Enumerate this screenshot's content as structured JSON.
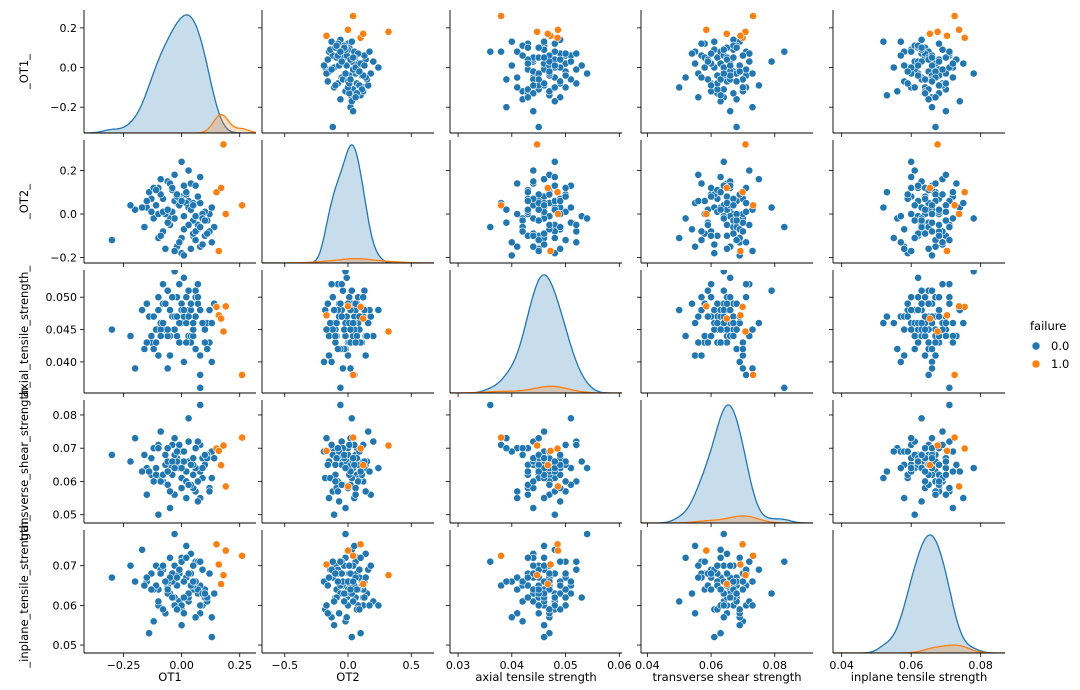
{
  "chart_data": {
    "type": "scatter",
    "subtype": "pairplot",
    "variables": [
      {
        "key": "OT1",
        "ylabel": "_OT1_",
        "xlabel": "OT1",
        "range": [
          -0.42,
          0.32
        ],
        "xticks": [
          -0.25,
          0.0,
          0.25
        ],
        "xtick_labels": [
          "−0.25",
          "0.00",
          "0.25"
        ],
        "yticks": [
          -0.2,
          0.0,
          0.2
        ],
        "ytick_labels": [
          "−0.2",
          "0.0",
          "0.2"
        ],
        "yrange": [
          -0.33,
          0.29
        ]
      },
      {
        "key": "OT2",
        "ylabel": "_OT2_",
        "xlabel": "OT2",
        "range": [
          -0.68,
          0.68
        ],
        "xticks": [
          -0.5,
          0.0,
          0.5
        ],
        "xtick_labels": [
          "−0.5",
          "0.0",
          "0.5"
        ],
        "yticks": [
          -0.2,
          0.0,
          0.2
        ],
        "ytick_labels": [
          "−0.2",
          "0.0",
          "0.2"
        ],
        "yrange": [
          -0.225,
          0.34
        ]
      },
      {
        "key": "axial_tensile_strength",
        "ylabel": "axial_tensile_strength_",
        "xlabel": "axial tensile strength",
        "range": [
          0.0285,
          0.0605
        ],
        "xticks": [
          0.03,
          0.04,
          0.05,
          0.06
        ],
        "xtick_labels": [
          "0.03",
          "0.04",
          "0.05",
          "0.06"
        ],
        "yticks": [
          0.04,
          0.045,
          0.05
        ],
        "ytick_labels": [
          "0.040",
          "0.045",
          "0.050"
        ],
        "yrange": [
          0.0352,
          0.0542
        ]
      },
      {
        "key": "transverse_shear_strength",
        "ylabel": "transverse_shear_strength_",
        "xlabel": "transverse shear strength",
        "range": [
          0.038,
          0.092
        ],
        "xticks": [
          0.04,
          0.06,
          0.08
        ],
        "xtick_labels": [
          "0.04",
          "0.06",
          "0.08"
        ],
        "yticks": [
          0.05,
          0.06,
          0.07,
          0.08
        ],
        "ytick_labels": [
          "0.05",
          "0.06",
          "0.07",
          "0.08"
        ],
        "yrange": [
          0.0475,
          0.0845
        ]
      },
      {
        "key": "inplane_tensile_strength",
        "ylabel": "_inplane_tensile_strength_",
        "xlabel": "inplane tensile strength",
        "range": [
          0.0375,
          0.087
        ],
        "xticks": [
          0.04,
          0.06,
          0.08
        ],
        "xtick_labels": [
          "0.04",
          "0.06",
          "0.08"
        ],
        "yticks": [
          0.05,
          0.06,
          0.07
        ],
        "ytick_labels": [
          "0.05",
          "0.06",
          "0.07"
        ],
        "yrange": [
          0.048,
          0.079
        ]
      }
    ],
    "hue": "failure",
    "legend": {
      "title": "failure",
      "entries": [
        "0.0",
        "1.0"
      ],
      "placement": "center-right"
    },
    "colors": {
      "0.0": "#1f77b4",
      "1.0": "#ff7f0e"
    },
    "series": [
      {
        "name": "0.0",
        "n": 96,
        "note": "scatter values per variable",
        "OT1": [
          -0.02,
          0.05,
          -0.1,
          0.12,
          -0.05,
          0.0,
          0.08,
          -0.15,
          0.03,
          -0.08,
          0.1,
          -0.12,
          0.02,
          0.06,
          -0.03,
          -0.2,
          0.0,
          0.04,
          -0.06,
          0.09,
          -0.01,
          0.07,
          -0.11,
          0.13,
          -0.04,
          0.01,
          -0.09,
          0.05,
          -0.17,
          0.11,
          0.02,
          -0.07,
          0.08,
          -0.03,
          0.14,
          -0.13,
          0.0,
          0.06,
          -0.05,
          0.03,
          -0.1,
          0.09,
          -0.02,
          -0.3,
          0.04,
          -0.14,
          0.07,
          -0.06,
          0.12,
          -0.01,
          0.01,
          -0.08,
          0.05,
          -0.12,
          0.1,
          -0.04,
          0.02,
          -0.16,
          0.08,
          -0.02,
          0.03,
          -0.09,
          0.06,
          -0.06,
          0.0,
          0.11,
          -0.11,
          0.04,
          -0.03,
          0.07,
          -0.22,
          0.01,
          -0.05,
          0.09,
          -0.07,
          0.02,
          -0.1,
          0.05,
          -0.01,
          0.13,
          -0.13,
          0.03,
          -0.04,
          0.06,
          -0.08,
          0.0,
          0.1,
          -0.15,
          0.04,
          -0.02,
          0.08,
          -0.06,
          0.01,
          -0.09,
          0.05,
          -0.03
        ],
        "OT2": [
          0.05,
          -0.1,
          0.12,
          0.0,
          -0.05,
          0.08,
          -0.15,
          0.03,
          0.2,
          -0.08,
          0.01,
          -0.02,
          0.1,
          -0.12,
          0.06,
          0.02,
          -0.18,
          0.14,
          -0.04,
          0.0,
          0.07,
          -0.07,
          0.04,
          -0.13,
          0.11,
          -0.01,
          0.16,
          -0.09,
          0.03,
          -0.03,
          0.09,
          -0.16,
          0.05,
          0.18,
          -0.06,
          0.01,
          -0.11,
          0.13,
          -0.02,
          0.06,
          0.0,
          -0.14,
          0.08,
          -0.12,
          0.02,
          0.1,
          -0.05,
          0.15,
          -0.08,
          0.04,
          -0.19,
          0.07,
          -0.03,
          0.12,
          -0.1,
          0.01,
          0.05,
          -0.06,
          0.17,
          -0.15,
          0.03,
          0.09,
          -0.01,
          -0.04,
          0.06,
          -0.09,
          0.11,
          0.02,
          -0.17,
          0.08,
          0.04,
          -0.07,
          0.14,
          -0.02,
          0.0,
          0.1,
          -0.11,
          0.05,
          -0.13,
          0.03,
          0.07,
          -0.05,
          0.12,
          -0.08,
          0.01,
          0.24,
          -0.03,
          0.06,
          -0.16,
          0.09,
          -0.06,
          0.02,
          0.13,
          -0.1,
          0.04,
          -0.02
        ],
        "axial_tensile_strength": [
          0.047,
          0.045,
          0.05,
          0.043,
          0.048,
          0.046,
          0.041,
          0.049,
          0.044,
          0.052,
          0.046,
          0.042,
          0.047,
          0.05,
          0.045,
          0.039,
          0.048,
          0.044,
          0.051,
          0.046,
          0.043,
          0.049,
          0.045,
          0.04,
          0.047,
          0.053,
          0.046,
          0.044,
          0.048,
          0.042,
          0.05,
          0.045,
          0.038,
          0.047,
          0.049,
          0.043,
          0.046,
          0.051,
          0.044,
          0.048,
          0.041,
          0.046,
          0.05,
          0.045,
          0.043,
          0.047,
          0.052,
          0.044,
          0.048,
          0.046,
          0.04,
          0.049,
          0.045,
          0.047,
          0.043,
          0.05,
          0.046,
          0.042,
          0.048,
          0.044,
          0.051,
          0.045,
          0.047,
          0.039,
          0.049,
          0.046,
          0.043,
          0.048,
          0.045,
          0.05,
          0.044,
          0.047,
          0.041,
          0.046,
          0.049,
          0.043,
          0.048,
          0.045,
          0.052,
          0.046,
          0.044,
          0.047,
          0.05,
          0.042,
          0.046,
          0.048,
          0.045,
          0.043,
          0.049,
          0.047,
          0.036,
          0.045,
          0.048,
          0.044,
          0.046,
          0.054
        ],
        "transverse_shear_strength": [
          0.067,
          0.062,
          0.071,
          0.058,
          0.065,
          0.069,
          0.055,
          0.064,
          0.072,
          0.06,
          0.066,
          0.07,
          0.063,
          0.057,
          0.068,
          0.073,
          0.061,
          0.065,
          0.059,
          0.067,
          0.07,
          0.054,
          0.064,
          0.069,
          0.062,
          0.066,
          0.075,
          0.058,
          0.063,
          0.068,
          0.06,
          0.065,
          0.071,
          0.056,
          0.067,
          0.062,
          0.069,
          0.064,
          0.052,
          0.066,
          0.07,
          0.061,
          0.065,
          0.068,
          0.059,
          0.063,
          0.072,
          0.066,
          0.057,
          0.064,
          0.069,
          0.062,
          0.067,
          0.06,
          0.065,
          0.071,
          0.055,
          0.068,
          0.063,
          0.066,
          0.079,
          0.061,
          0.064,
          0.07,
          0.058,
          0.067,
          0.062,
          0.065,
          0.073,
          0.06,
          0.066,
          0.069,
          0.057,
          0.064,
          0.068,
          0.063,
          0.05,
          0.065,
          0.071,
          0.061,
          0.067,
          0.059,
          0.066,
          0.07,
          0.062,
          0.064,
          0.068,
          0.056,
          0.065,
          0.069,
          0.083,
          0.063,
          0.066,
          0.06,
          0.067,
          0.064
        ],
        "inplane_tensile_strength": [
          0.065,
          0.07,
          0.06,
          0.068,
          0.063,
          0.072,
          0.058,
          0.066,
          0.061,
          0.069,
          0.064,
          0.056,
          0.067,
          0.071,
          0.062,
          0.066,
          0.059,
          0.073,
          0.065,
          0.06,
          0.068,
          0.063,
          0.07,
          0.057,
          0.066,
          0.062,
          0.069,
          0.064,
          0.074,
          0.061,
          0.067,
          0.058,
          0.065,
          0.07,
          0.063,
          0.068,
          0.055,
          0.066,
          0.072,
          0.062,
          0.064,
          0.069,
          0.06,
          0.067,
          0.065,
          0.053,
          0.071,
          0.063,
          0.068,
          0.061,
          0.066,
          0.059,
          0.07,
          0.064,
          0.062,
          0.068,
          0.075,
          0.065,
          0.06,
          0.067,
          0.063,
          0.069,
          0.057,
          0.066,
          0.071,
          0.062,
          0.065,
          0.068,
          0.06,
          0.064,
          0.07,
          0.058,
          0.067,
          0.063,
          0.066,
          0.072,
          0.061,
          0.065,
          0.069,
          0.052,
          0.064,
          0.068,
          0.062,
          0.066,
          0.07,
          0.06,
          0.063,
          0.067,
          0.065,
          0.059,
          0.071,
          0.064,
          0.062,
          0.068,
          0.066,
          0.078
        ]
      },
      {
        "name": "1.0",
        "n": 6,
        "note": "scatter values per variable",
        "OT1": [
          0.15,
          0.18,
          0.16,
          0.26,
          0.19,
          0.17
        ],
        "OT2": [
          0.1,
          0.32,
          -0.17,
          0.04,
          0.0,
          0.12
        ],
        "axial_tensile_strength": [
          0.0485,
          0.0447,
          0.0472,
          0.038,
          0.0486,
          0.0467
        ],
        "transverse_shear_strength": [
          0.0699,
          0.0708,
          0.0692,
          0.0732,
          0.0585,
          0.0649
        ],
        "inplane_tensile_strength": [
          0.0754,
          0.0676,
          0.0703,
          0.0725,
          0.0738,
          0.0654
        ]
      }
    ]
  }
}
